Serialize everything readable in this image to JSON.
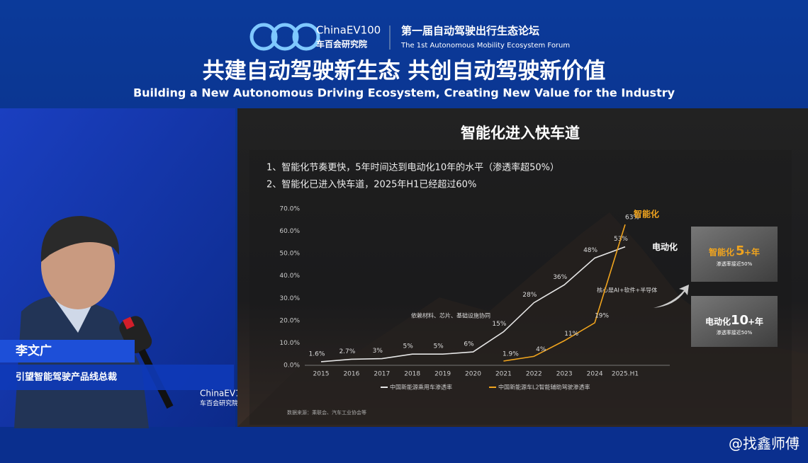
{
  "header": {
    "logo_name": "ChinaEV100",
    "logo_org": "车百会研究院",
    "forum_cn": "第一届自动驾驶出行生态论坛",
    "forum_en": "The 1st Autonomous Mobility Ecosystem Forum",
    "title_cn": "共建自动驾驶新生态  共创自动驾驶新价值",
    "title_en": "Building a New Autonomous Driving Ecosystem, Creating New Value for the Industry"
  },
  "speaker": {
    "name": "李文广",
    "role": "引望智能驾驶产品线总裁"
  },
  "slide": {
    "title": "智能化进入快车道",
    "points": [
      "1、智能化节奏更快，5年时间达到电动化10年的水平（渗透率超50%）",
      "2、智能化已进入快车道，2025年H1已经超过60%"
    ],
    "source": "数据来源：乘联会、汽车工业协会等",
    "side_boxes": [
      {
        "label": "智能化",
        "number": 5,
        "suffix": "+年",
        "note": "渗透率接近50%"
      },
      {
        "label": "电动化",
        "number": 10,
        "suffix": "+年",
        "note": "渗透率接近50%"
      }
    ]
  },
  "watermark": "@找鑫师傅",
  "chart_data": {
    "type": "line",
    "categories": [
      "2015",
      "2016",
      "2017",
      "2018",
      "2019",
      "2020",
      "2021",
      "2022",
      "2023",
      "2024",
      "2025.H1"
    ],
    "series": [
      {
        "name": "中国新能源乘用车渗透率",
        "end_label": "电动化",
        "color": "#e6e6e6",
        "values": [
          1.6,
          2.7,
          3,
          5,
          5,
          6,
          15,
          28,
          36,
          48,
          53
        ],
        "value_labels": [
          "1.6%",
          "2.7%",
          "3%",
          "5%",
          "5%",
          "6%",
          "15%",
          "28%",
          "36%",
          "48%",
          "53%"
        ]
      },
      {
        "name": "中国新能源车L2智能辅助驾驶渗透率",
        "end_label": "智能化",
        "color": "#f0a41e",
        "values": [
          null,
          null,
          null,
          null,
          null,
          null,
          1.9,
          4,
          11,
          19,
          63
        ],
        "value_labels": [
          null,
          null,
          null,
          null,
          null,
          null,
          "1.9%",
          "4%",
          "11%",
          "19%",
          "63%"
        ]
      }
    ],
    "annotations": [
      "依赖材料、芯片、基础设施协同",
      "核心是AI+软件+半导体"
    ],
    "ylim": [
      0,
      70
    ],
    "yticks": [
      {
        "value": 0,
        "label": "0.0%"
      },
      {
        "value": 10,
        "label": "10.0%"
      },
      {
        "value": 20,
        "label": "20.0%"
      },
      {
        "value": 30,
        "label": "30.0%"
      },
      {
        "value": 40,
        "label": "40.0%"
      },
      {
        "value": 50,
        "label": "50.0%"
      },
      {
        "value": 60,
        "label": "60.0%"
      },
      {
        "value": 70,
        "label": "70.0%"
      }
    ],
    "grid": false
  }
}
